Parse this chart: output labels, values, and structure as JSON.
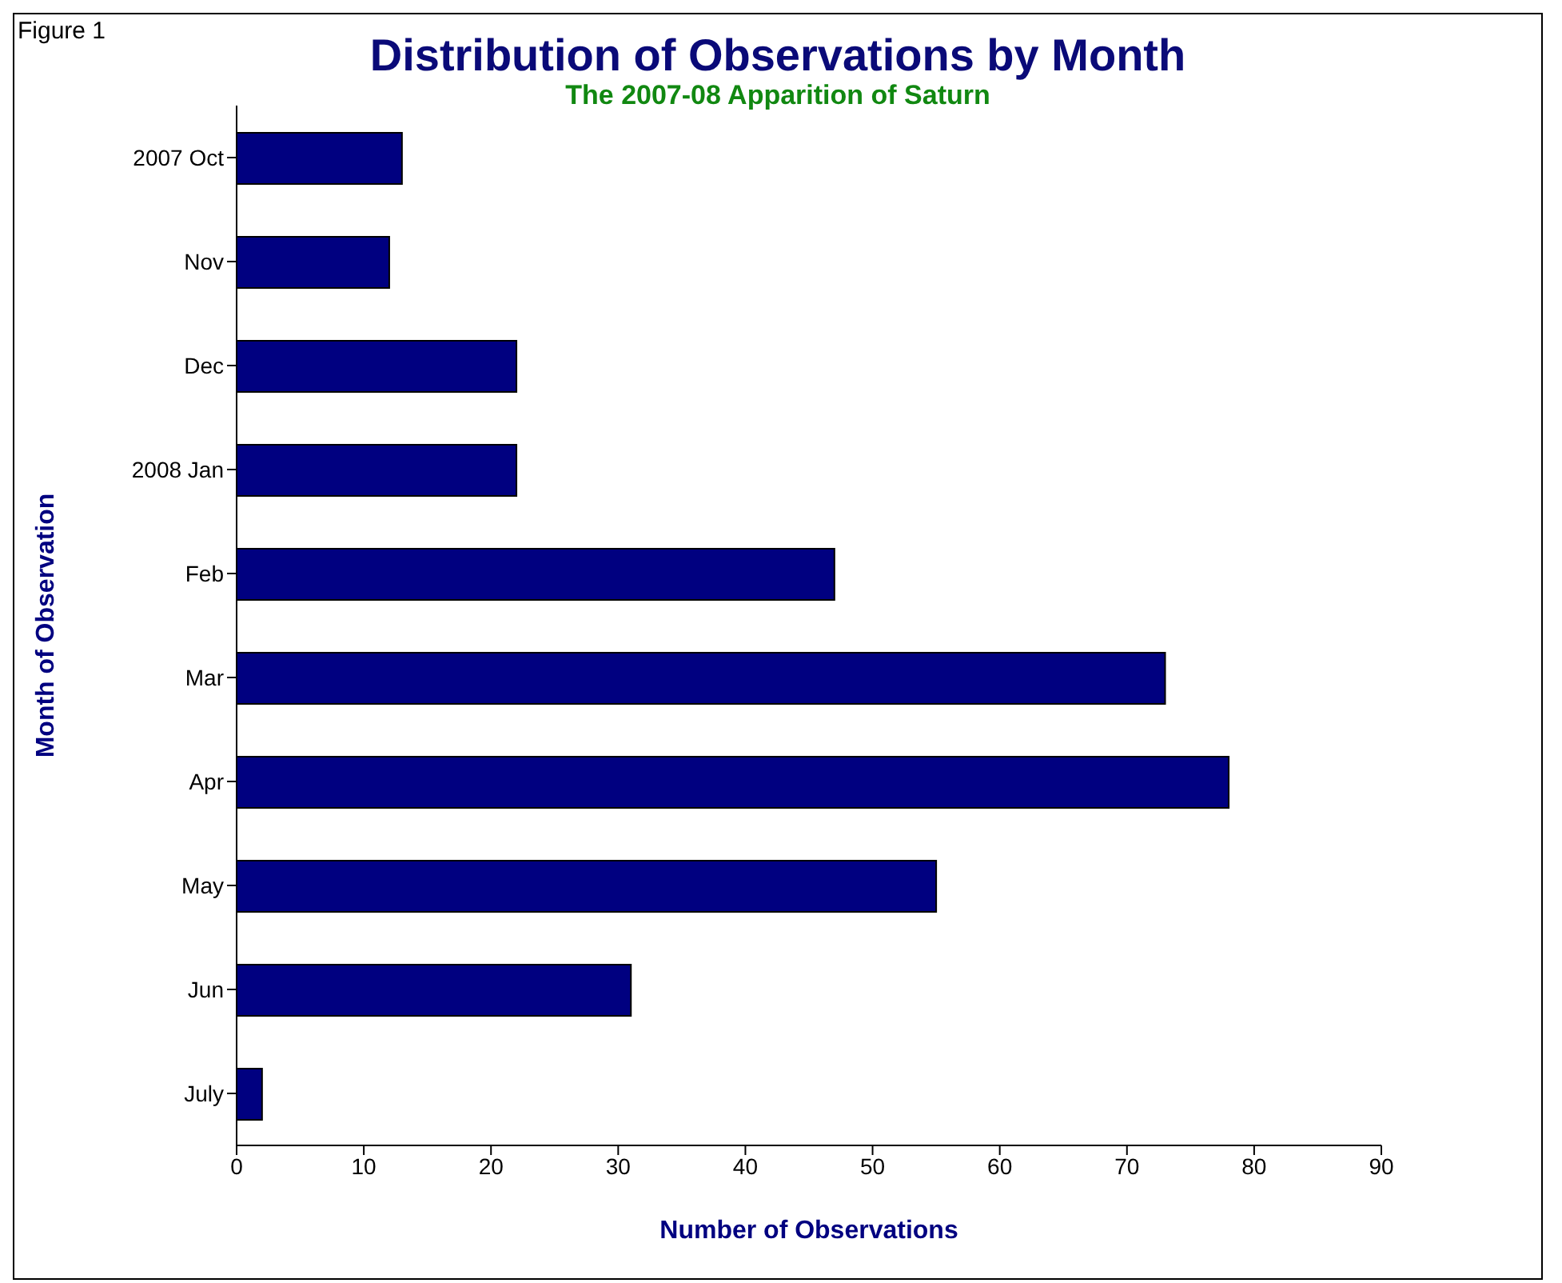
{
  "chart_data": {
    "type": "bar",
    "orientation": "horizontal",
    "title": "Distribution of Observations by Month",
    "subtitle": "The 2007-08 Apparition of Saturn",
    "xlabel": "Number of Observations",
    "ylabel": "Month of Observation",
    "annotations": [
      "Figure 1"
    ],
    "categories": [
      "2007 Oct",
      "Nov",
      "Dec",
      "2008 Jan",
      "Feb",
      "Mar",
      "Apr",
      "May",
      "Jun",
      "July"
    ],
    "values": [
      13,
      12,
      22,
      22,
      47,
      73,
      78,
      55,
      31,
      2
    ],
    "color": "#000080",
    "xlim": [
      0,
      90
    ],
    "xticks": [
      0,
      10,
      20,
      30,
      40,
      50,
      60,
      70,
      80,
      90
    ]
  }
}
